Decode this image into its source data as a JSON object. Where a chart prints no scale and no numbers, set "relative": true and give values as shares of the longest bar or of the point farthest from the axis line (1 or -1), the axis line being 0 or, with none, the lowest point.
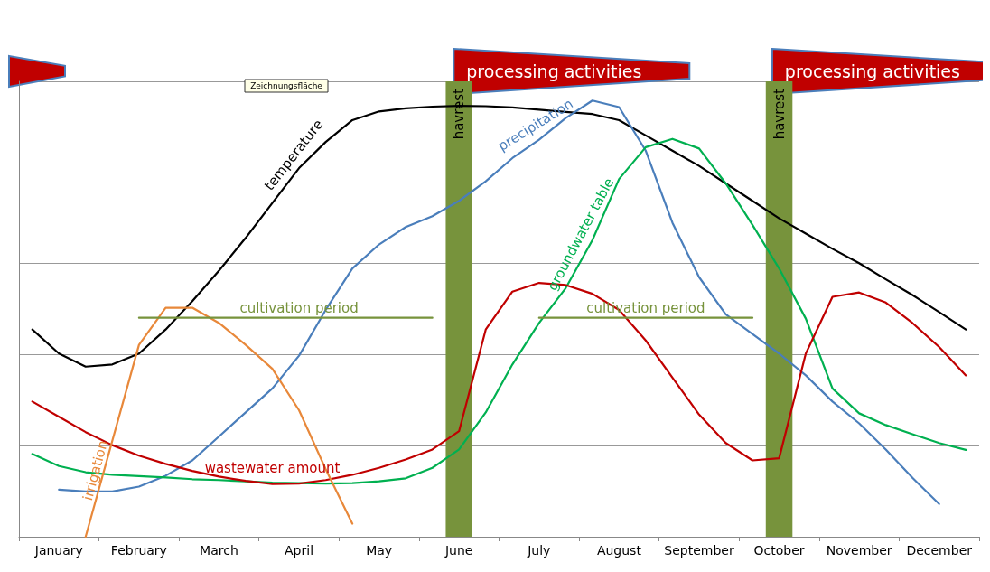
{
  "chart_data": {
    "type": "line",
    "relative": true,
    "categories": [
      null,
      "January",
      null,
      null,
      "February",
      null,
      null,
      "March",
      null,
      null,
      "April",
      null,
      null,
      "May",
      null,
      null,
      "June",
      null,
      null,
      "July",
      null,
      null,
      "August",
      null,
      null,
      "September",
      null,
      null,
      "October",
      null,
      null,
      "November",
      null,
      null,
      "December",
      null
    ],
    "grid": "y",
    "legend": false,
    "marker": "none",
    "line_style": "solid",
    "series": [
      {
        "name": "temperature",
        "color": "#000000",
        "values": [
          0.475,
          0.42,
          0.39,
          0.395,
          0.42,
          0.475,
          0.54,
          0.61,
          0.685,
          0.765,
          0.845,
          0.905,
          0.955,
          0.975,
          0.982,
          0.986,
          0.988,
          0.987,
          0.984,
          0.979,
          0.974,
          0.969,
          0.955,
          0.92,
          0.885,
          0.85,
          0.81,
          0.77,
          0.73,
          0.695,
          0.66,
          0.627,
          0.59,
          0.554,
          0.515,
          0.475
        ]
      },
      {
        "name": "precipitation",
        "color": "#4a7ebb",
        "values": [
          null,
          0.108,
          0.104,
          0.104,
          0.115,
          0.14,
          0.175,
          0.23,
          0.285,
          0.34,
          0.415,
          0.52,
          0.615,
          0.67,
          0.71,
          0.735,
          0.77,
          0.815,
          0.868,
          0.91,
          0.96,
          1,
          0.985,
          0.885,
          0.72,
          0.595,
          0.51,
          0.465,
          0.42,
          0.37,
          0.31,
          0.26,
          0.2,
          0.135,
          0.075,
          null
        ]
      },
      {
        "name": "groundwater table",
        "color": "#00b050",
        "values": [
          0.19,
          0.162,
          0.148,
          0.142,
          0.139,
          0.136,
          0.132,
          0.13,
          0.127,
          0.124,
          0.123,
          0.122,
          0.123,
          0.127,
          0.134,
          0.158,
          0.2,
          0.285,
          0.395,
          0.49,
          0.57,
          0.68,
          0.82,
          0.893,
          0.912,
          0.89,
          0.81,
          0.715,
          0.615,
          0.5,
          0.34,
          0.283,
          0.256,
          0.235,
          0.215,
          0.199
        ]
      },
      {
        "name": "wastewater amount",
        "color": "#c00000",
        "values": [
          0.31,
          0.275,
          0.24,
          0.21,
          0.186,
          0.167,
          0.151,
          0.138,
          0.128,
          0.121,
          0.122,
          0.13,
          0.142,
          0.158,
          0.177,
          0.2,
          0.242,
          0.475,
          0.562,
          0.582,
          0.577,
          0.557,
          0.52,
          0.45,
          0.365,
          0.28,
          0.215,
          0.175,
          0.18,
          0.42,
          0.55,
          0.56,
          0.537,
          0.49,
          0.435,
          0.37
        ]
      },
      {
        "name": "irrigation",
        "color": "#e8883a",
        "values": [
          null,
          null,
          0,
          0.22,
          0.44,
          0.525,
          0.525,
          0.49,
          0.44,
          0.385,
          0.29,
          0.155,
          0.03,
          null,
          null,
          null,
          null,
          null,
          null,
          null,
          null,
          null,
          null,
          null,
          null,
          null,
          null,
          null,
          null,
          null,
          null,
          null,
          null,
          null,
          null,
          null
        ]
      },
      {
        "name": "cultivation period",
        "color": "#77933c",
        "values": [
          null,
          null,
          null,
          null,
          0.502,
          0.502,
          0.502,
          0.502,
          0.502,
          0.502,
          0.502,
          0.502,
          0.502,
          0.502,
          0.502,
          0.502,
          null,
          null,
          null,
          null,
          null,
          null,
          null,
          null,
          null,
          null,
          null,
          null,
          null,
          null,
          null,
          null,
          null,
          null,
          null,
          null
        ]
      },
      {
        "name": "cultivation period",
        "color": "#77933c",
        "values": [
          null,
          null,
          null,
          null,
          null,
          null,
          null,
          null,
          null,
          null,
          null,
          null,
          null,
          null,
          null,
          null,
          null,
          null,
          null,
          0.502,
          0.502,
          0.502,
          0.502,
          0.502,
          0.502,
          0.502,
          0.502,
          0.502,
          null,
          null,
          null,
          null,
          null,
          null,
          null,
          null
        ]
      }
    ],
    "bands": [
      {
        "axis": "x",
        "from": "June",
        "to": "June",
        "label": "havrest",
        "color": "#77933c"
      },
      {
        "axis": "x",
        "from": "October",
        "to": "October",
        "label": "havrest",
        "color": "#77933c"
      }
    ],
    "annotations": [
      "processing activities",
      "processing activities",
      "Zeichnungsfläche"
    ]
  }
}
